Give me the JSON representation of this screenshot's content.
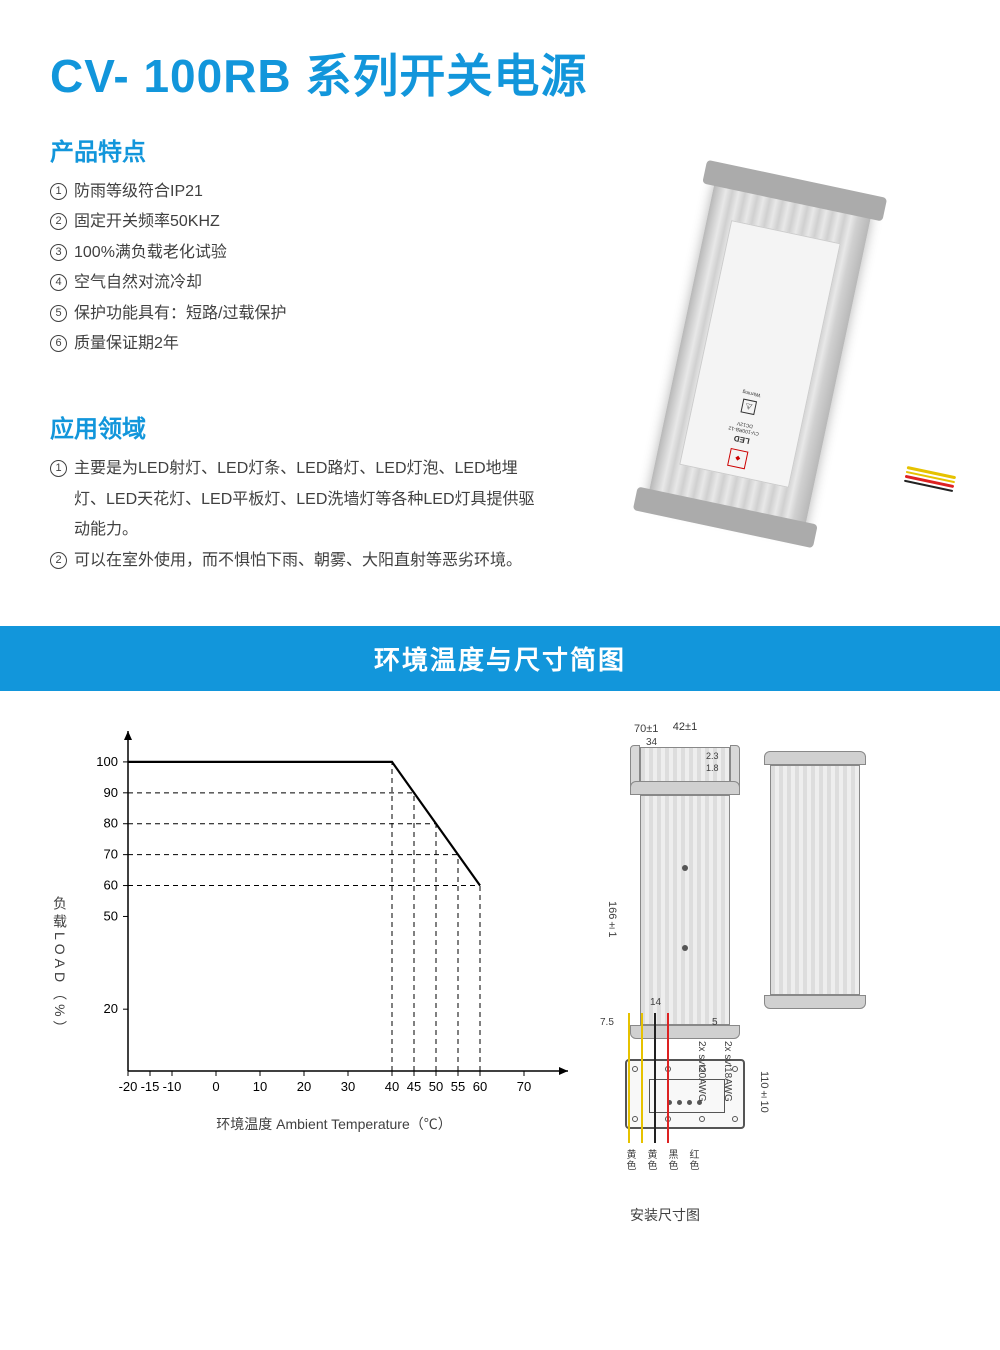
{
  "title": "CV- 100RB 系列开关电源",
  "features": {
    "heading": "产品特点",
    "items": [
      "防雨等级符合IP21",
      "固定开关频率50KHZ",
      "100%满负载老化试验",
      "空气自然对流冷却",
      "保护功能具有：短路/过载保护",
      "质量保证期2年"
    ]
  },
  "applications": {
    "heading": "应用领域",
    "items": [
      "主要是为LED射灯、LED灯条、LED路灯、LED灯泡、LED地埋灯、LED天花灯、LED平板灯、LED洗墙灯等各种LED灯具提供驱动能力。",
      "可以在室外使用，而不惧怕下雨、朝雾、大阳直射等恶劣环境。"
    ]
  },
  "banner": "环境温度与尺寸简图",
  "chart": {
    "type": "line",
    "y_label": "负载LOAD（%）",
    "x_label": "环境温度 Ambient Temperature（℃）",
    "xlim": [
      -20,
      80
    ],
    "ylim": [
      0,
      110
    ],
    "x_ticks": [
      -20,
      -15,
      -10,
      0,
      10,
      20,
      30,
      40,
      45,
      50,
      55,
      60,
      70
    ],
    "y_ticks": [
      20,
      50,
      60,
      70,
      80,
      90,
      100
    ],
    "line_points": [
      [
        -20,
        100
      ],
      [
        40,
        100
      ],
      [
        60,
        60
      ]
    ],
    "guide_x": [
      40,
      45,
      50,
      55,
      60
    ],
    "guide_y": [
      60,
      70,
      80,
      90,
      100
    ],
    "line_color": "#000000",
    "line_width": 2.2,
    "axis_color": "#000000",
    "dash_color": "#000000",
    "bg": "#ffffff",
    "font_size": 13
  },
  "dimensions": {
    "top_width": "42±1",
    "body_width": "70±1",
    "inner": "34",
    "body_height": "166±1",
    "bracket": "14",
    "pad": "7.5",
    "gap": "5",
    "small1": "2.3",
    "small2": "1.8",
    "wire_len": "110±10",
    "awg1": "2x svt20AWG",
    "awg2": "2x svt18AWG",
    "wire_colors": [
      "黄色",
      "黄色",
      "黑色",
      "红色"
    ],
    "caption": "安装尺寸图"
  },
  "colors": {
    "primary": "#1296db",
    "text": "#404040"
  }
}
